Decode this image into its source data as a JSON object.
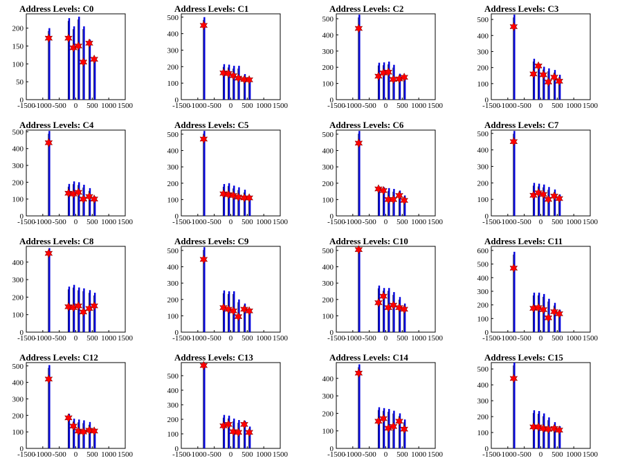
{
  "chart_data": [
    {
      "title": "Address Levels: C0",
      "type": "bar",
      "ylim": [
        0,
        240
      ],
      "yticks": [
        0,
        50,
        100,
        150,
        200
      ],
      "xlim": [
        -1500,
        1500
      ],
      "xticks": [
        -1500,
        -1000,
        -500,
        0,
        500,
        1000,
        1500
      ],
      "x": [
        -800,
        -200,
        -50,
        100,
        250,
        430,
        580
      ],
      "bar_values": [
        200,
        228,
        205,
        232,
        205,
        168,
        118
      ],
      "markers": [
        172,
        172,
        145,
        150,
        105,
        158,
        113
      ]
    },
    {
      "title": "Address Levels: C1",
      "type": "bar",
      "ylim": [
        0,
        520
      ],
      "yticks": [
        0,
        100,
        200,
        300,
        400,
        500
      ],
      "xlim": [
        -1500,
        1500
      ],
      "xticks": [
        -1500,
        -1000,
        -500,
        0,
        500,
        1000,
        1500
      ],
      "x": [
        -800,
        -200,
        -50,
        100,
        250,
        430,
        580
      ],
      "bar_values": [
        500,
        215,
        212,
        205,
        205,
        155,
        125
      ],
      "markers": [
        450,
        162,
        158,
        145,
        130,
        122,
        120
      ]
    },
    {
      "title": "Address Levels: C2",
      "type": "bar",
      "ylim": [
        0,
        530
      ],
      "yticks": [
        0,
        100,
        200,
        300,
        400,
        500
      ],
      "xlim": [
        -1500,
        1500
      ],
      "xticks": [
        -1500,
        -1000,
        -500,
        0,
        500,
        1000,
        1500
      ],
      "x": [
        -800,
        -200,
        -50,
        100,
        250,
        430,
        580
      ],
      "bar_values": [
        525,
        228,
        230,
        235,
        215,
        160,
        145
      ],
      "markers": [
        440,
        145,
        165,
        170,
        125,
        128,
        138
      ]
    },
    {
      "title": "Address Levels: C3",
      "type": "bar",
      "ylim": [
        0,
        535
      ],
      "yticks": [
        0,
        100,
        200,
        300,
        400,
        500
      ],
      "xlim": [
        -1500,
        1500
      ],
      "xticks": [
        -1500,
        -1000,
        -500,
        0,
        500,
        1000,
        1500
      ],
      "x": [
        -800,
        -200,
        -50,
        100,
        250,
        430,
        580
      ],
      "bar_values": [
        530,
        255,
        220,
        205,
        195,
        185,
        155
      ],
      "markers": [
        455,
        160,
        210,
        155,
        110,
        140,
        115
      ]
    },
    {
      "title": "Address Levels: C4",
      "type": "bar",
      "ylim": [
        0,
        510
      ],
      "yticks": [
        0,
        100,
        200,
        300,
        400,
        500
      ],
      "xlim": [
        -1500,
        1500
      ],
      "xticks": [
        -1500,
        -1000,
        -500,
        0,
        500,
        1000,
        1500
      ],
      "x": [
        -800,
        -200,
        -50,
        100,
        250,
        430,
        580
      ],
      "bar_values": [
        505,
        190,
        205,
        200,
        185,
        165,
        115
      ],
      "markers": [
        435,
        135,
        130,
        140,
        100,
        115,
        100
      ]
    },
    {
      "title": "Address Levels: C5",
      "type": "bar",
      "ylim": [
        0,
        525
      ],
      "yticks": [
        0,
        100,
        200,
        300,
        400,
        500
      ],
      "xlim": [
        -1500,
        1500
      ],
      "xticks": [
        -1500,
        -1000,
        -500,
        0,
        500,
        1000,
        1500
      ],
      "x": [
        -800,
        -200,
        -50,
        100,
        250,
        430,
        580
      ],
      "bar_values": [
        520,
        195,
        200,
        185,
        175,
        160,
        125
      ],
      "markers": [
        470,
        135,
        130,
        125,
        115,
        110,
        110
      ]
    },
    {
      "title": "Address Levels: C6",
      "type": "bar",
      "ylim": [
        0,
        525
      ],
      "yticks": [
        0,
        100,
        200,
        300,
        400,
        500
      ],
      "xlim": [
        -1500,
        1500
      ],
      "xticks": [
        -1500,
        -1000,
        -500,
        0,
        500,
        1000,
        1500
      ],
      "x": [
        -800,
        -200,
        -50,
        100,
        250,
        430,
        580
      ],
      "bar_values": [
        520,
        180,
        175,
        170,
        165,
        155,
        125
      ],
      "markers": [
        445,
        165,
        155,
        100,
        100,
        125,
        95
      ]
    },
    {
      "title": "Address Levels: C7",
      "type": "bar",
      "ylim": [
        0,
        520
      ],
      "yticks": [
        0,
        100,
        200,
        300,
        400,
        500
      ],
      "xlim": [
        -1500,
        1500
      ],
      "xticks": [
        -1500,
        -1000,
        -500,
        0,
        500,
        1000,
        1500
      ],
      "x": [
        -800,
        -200,
        -50,
        100,
        250,
        430,
        580
      ],
      "bar_values": [
        515,
        200,
        195,
        190,
        175,
        160,
        130
      ],
      "markers": [
        450,
        125,
        140,
        130,
        100,
        120,
        105
      ]
    },
    {
      "title": "Address Levels: C8",
      "type": "bar",
      "ylim": [
        0,
        490
      ],
      "yticks": [
        0,
        100,
        200,
        300,
        400
      ],
      "xlim": [
        -1500,
        1500
      ],
      "xticks": [
        -1500,
        -1000,
        -500,
        0,
        500,
        1000,
        1500
      ],
      "x": [
        -800,
        -200,
        -50,
        100,
        250,
        430,
        580
      ],
      "bar_values": [
        480,
        260,
        270,
        255,
        250,
        240,
        225
      ],
      "markers": [
        450,
        145,
        140,
        150,
        115,
        135,
        150
      ]
    },
    {
      "title": "Address Levels: C9",
      "type": "bar",
      "ylim": [
        0,
        525
      ],
      "yticks": [
        0,
        100,
        200,
        300,
        400,
        500
      ],
      "xlim": [
        -1500,
        1500
      ],
      "xticks": [
        -1500,
        -1000,
        -500,
        0,
        500,
        1000,
        1500
      ],
      "x": [
        -800,
        -200,
        -50,
        100,
        250,
        430,
        580
      ],
      "bar_values": [
        520,
        255,
        250,
        250,
        200,
        175,
        140
      ],
      "markers": [
        445,
        150,
        140,
        130,
        95,
        140,
        130
      ]
    },
    {
      "title": "Address Levels: C10",
      "type": "bar",
      "ylim": [
        0,
        525
      ],
      "yticks": [
        0,
        100,
        200,
        300,
        400,
        500
      ],
      "xlim": [
        -1500,
        1500
      ],
      "xticks": [
        -1500,
        -1000,
        -500,
        0,
        500,
        1000,
        1500
      ],
      "x": [
        -800,
        -200,
        -50,
        100,
        250,
        430,
        580
      ],
      "bar_values": [
        515,
        285,
        270,
        270,
        245,
        215,
        175
      ],
      "markers": [
        505,
        180,
        220,
        150,
        165,
        150,
        140
      ]
    },
    {
      "title": "Address Levels: C11",
      "type": "bar",
      "ylim": [
        0,
        630
      ],
      "yticks": [
        0,
        100,
        200,
        300,
        400,
        500,
        600
      ],
      "xlim": [
        -1500,
        1500
      ],
      "xticks": [
        -1500,
        -1000,
        -500,
        0,
        500,
        1000,
        1500
      ],
      "x": [
        -800,
        -200,
        -50,
        100,
        250,
        430,
        580
      ],
      "bar_values": [
        590,
        290,
        290,
        280,
        245,
        215,
        165
      ],
      "markers": [
        470,
        175,
        180,
        165,
        105,
        150,
        135
      ]
    },
    {
      "title": "Address Levels: C12",
      "type": "bar",
      "ylim": [
        0,
        520
      ],
      "yticks": [
        0,
        100,
        200,
        300,
        400,
        500
      ],
      "xlim": [
        -1500,
        1500
      ],
      "xticks": [
        -1500,
        -1000,
        -500,
        0,
        500,
        1000,
        1500
      ],
      "x": [
        -800,
        -200,
        -50,
        100,
        250,
        430,
        580
      ],
      "bar_values": [
        505,
        210,
        180,
        175,
        170,
        160,
        120
      ],
      "markers": [
        420,
        185,
        135,
        105,
        100,
        110,
        105
      ]
    },
    {
      "title": "Address Levels: C13",
      "type": "bar",
      "ylim": [
        0,
        590
      ],
      "yticks": [
        0,
        100,
        200,
        300,
        400,
        500
      ],
      "xlim": [
        -1500,
        1500
      ],
      "xticks": [
        -1500,
        -1000,
        -500,
        0,
        500,
        1000,
        1500
      ],
      "x": [
        -800,
        -200,
        -50,
        100,
        250,
        430,
        580
      ],
      "bar_values": [
        585,
        230,
        225,
        205,
        195,
        190,
        150
      ],
      "markers": [
        570,
        155,
        165,
        115,
        110,
        165,
        110
      ]
    },
    {
      "title": "Address Levels: C14",
      "type": "bar",
      "ylim": [
        0,
        490
      ],
      "yticks": [
        0,
        100,
        200,
        300,
        400
      ],
      "xlim": [
        -1500,
        1500
      ],
      "xticks": [
        -1500,
        -1000,
        -500,
        0,
        500,
        1000,
        1500
      ],
      "x": [
        -800,
        -200,
        -50,
        100,
        250,
        430,
        580
      ],
      "bar_values": [
        480,
        235,
        230,
        225,
        215,
        200,
        165
      ],
      "markers": [
        430,
        155,
        170,
        115,
        125,
        155,
        110
      ]
    },
    {
      "title": "Address Levels: C15",
      "type": "bar",
      "ylim": [
        0,
        540
      ],
      "yticks": [
        0,
        100,
        200,
        300,
        400,
        500
      ],
      "xlim": [
        -1500,
        1500
      ],
      "xticks": [
        -1500,
        -1000,
        -500,
        0,
        500,
        1000,
        1500
      ],
      "x": [
        -800,
        -200,
        -50,
        100,
        250,
        430,
        580
      ],
      "bar_values": [
        540,
        240,
        235,
        220,
        195,
        165,
        140
      ],
      "markers": [
        440,
        135,
        135,
        125,
        120,
        125,
        115
      ]
    }
  ]
}
